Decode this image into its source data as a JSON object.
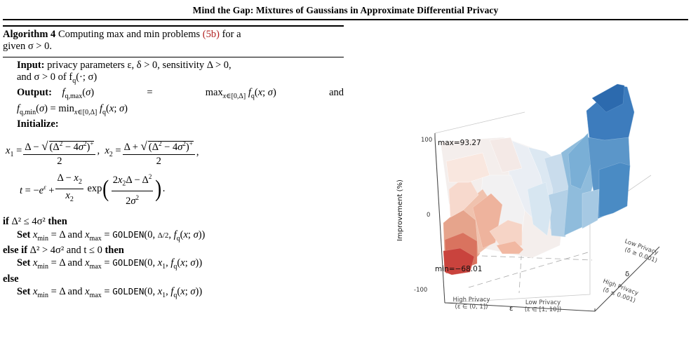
{
  "header": {
    "title": "Mind the Gap: Mixtures of Gaussians in Approximate Differential Privacy"
  },
  "algorithm": {
    "label": "Algorithm 4",
    "caption_text_1": "Computing",
    "caption_max": "max",
    "caption_and": "and",
    "caption_min": "min",
    "caption_text_2": "problems",
    "caption_ref": "(5b)",
    "caption_text_3": "for a",
    "caption_line2": "given σ > 0.",
    "input_label": "Input:",
    "input_text_1": "privacy parameters ε, δ > 0, sensitivity Δ > 0,",
    "input_text_2": "and σ > 0 of f",
    "input_text_2b": "(·; σ)",
    "output_label": "Output:",
    "initialize_label": "Initialize:",
    "if_kw": "if",
    "if_cond": "Δ² ≤ 4σ²",
    "then_kw": "then",
    "elseif_kw": "else if",
    "elseif_cond": "Δ² > 4σ² and t ≤ 0",
    "else_kw": "else",
    "set_kw": "Set",
    "golden": "GOLDEN"
  },
  "chart_data": {
    "type": "surface3d",
    "ylabel": "Improvement (%)",
    "zticks": [
      "100",
      "0",
      "-100"
    ],
    "annotations": [
      "max=93.27",
      "min=−68.01"
    ],
    "max_value": 93.27,
    "min_value": -68.01,
    "epsilon_axis": {
      "label": "ε",
      "ticks": [
        "High Privacy",
        "(ε ∈ (0, 1])",
        "Low Privacy",
        "(ε ∈ [1, 10])"
      ]
    },
    "delta_axis": {
      "label": "δ",
      "ticks": [
        "Low Privacy",
        "(δ ≥ 0.001)",
        "High Privacy",
        "(δ ≤ 0.001)"
      ]
    },
    "colormap": {
      "negative": "#c9433d",
      "neutral": "#f4f2f1",
      "positive": "#2c6aae"
    }
  }
}
